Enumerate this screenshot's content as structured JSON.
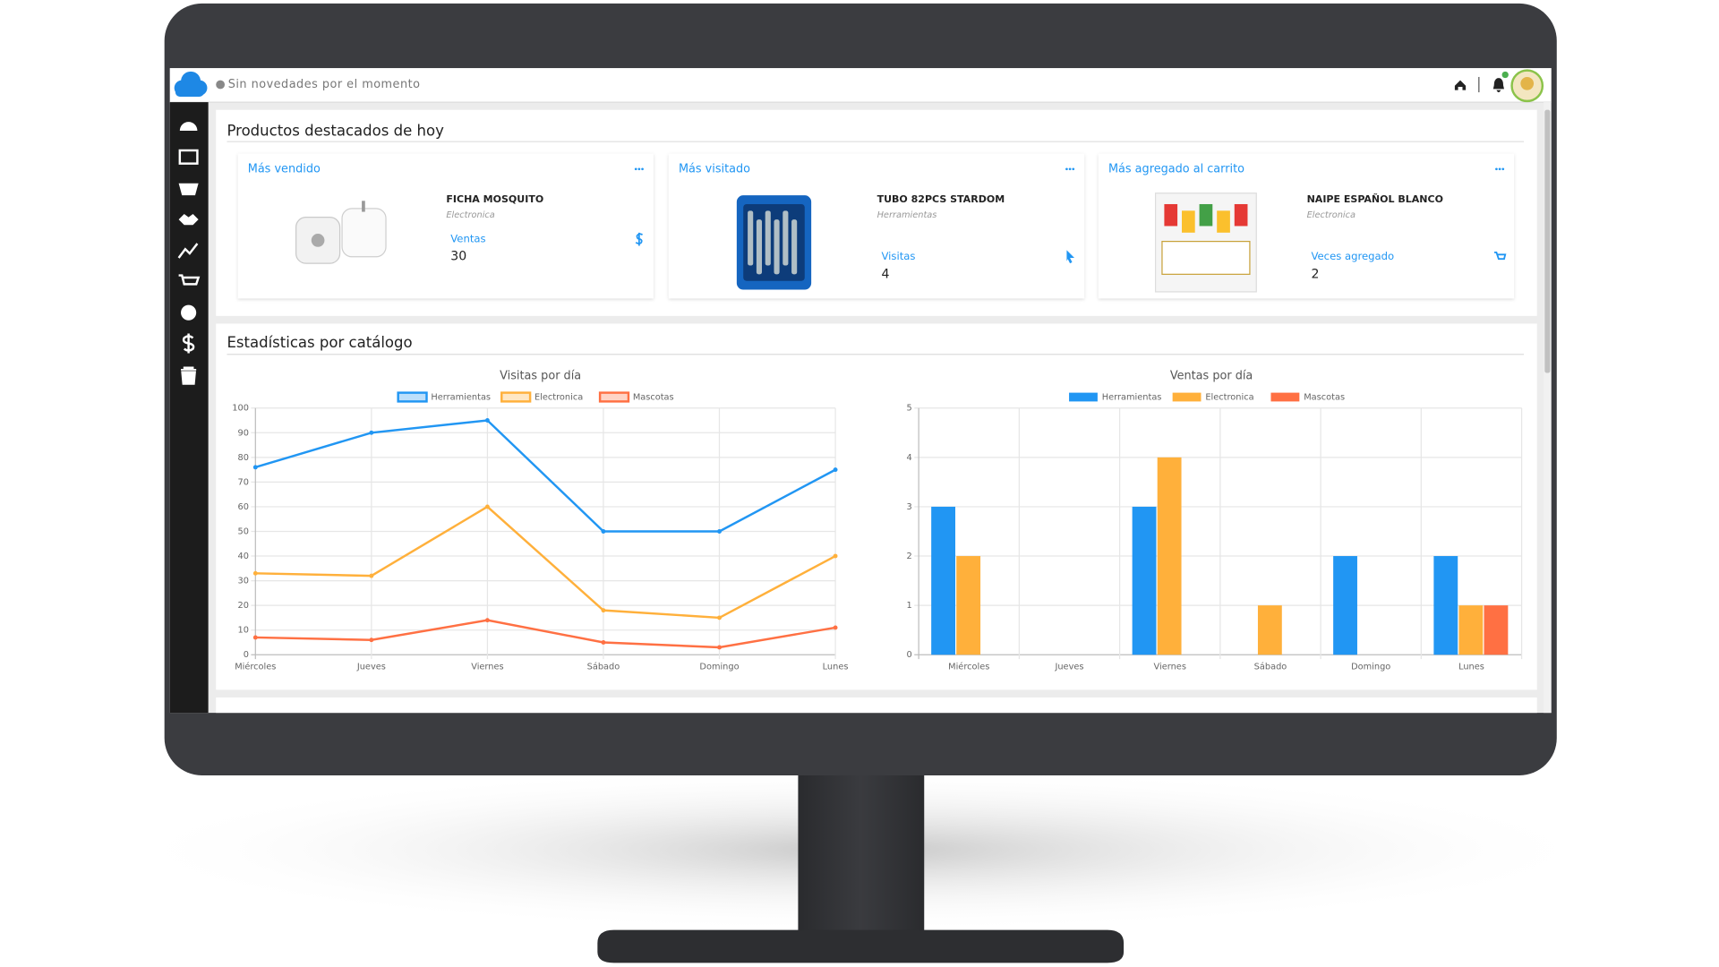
{
  "header": {
    "notice": "Sin novedades por el momento"
  },
  "featured": {
    "title": "Productos destacados de hoy",
    "cards": [
      {
        "heading": "Más vendido",
        "product": "FICHA MOSQUITO",
        "category": "Electronica",
        "metric": "Ventas",
        "value": 30
      },
      {
        "heading": "Más visitado",
        "product": "TUBO 82PCS STARDOM",
        "category": "Herramientas",
        "metric": "Visitas",
        "value": 4
      },
      {
        "heading": "Más agregado al carrito",
        "product": "NAIPE ESPAÑOL BLANCO",
        "category": "Electronica",
        "metric": "Veces agregado",
        "value": 2
      }
    ]
  },
  "stats": {
    "title": "Estadísticas por catálogo"
  },
  "chart_data": [
    {
      "type": "line",
      "title": "Visitas por día",
      "categories": [
        "Miércoles",
        "Jueves",
        "Viernes",
        "Sábado",
        "Domingo",
        "Lunes"
      ],
      "series": [
        {
          "name": "Herramientas",
          "color": "#2196f3",
          "values": [
            76,
            90,
            95,
            50,
            50,
            75
          ]
        },
        {
          "name": "Electronica",
          "color": "#ffb03b",
          "values": [
            33,
            32,
            60,
            18,
            15,
            40
          ]
        },
        {
          "name": "Mascotas",
          "color": "#ff7043",
          "values": [
            7,
            6,
            14,
            5,
            3,
            11
          ]
        }
      ],
      "ylim": [
        0,
        100
      ],
      "yticks": [
        0,
        10,
        20,
        30,
        40,
        50,
        60,
        70,
        80,
        90,
        100
      ],
      "grid": true,
      "legend": "top"
    },
    {
      "type": "bar",
      "title": "Ventas por día",
      "categories": [
        "Miércoles",
        "Jueves",
        "Viernes",
        "Sábado",
        "Domingo",
        "Lunes"
      ],
      "series": [
        {
          "name": "Herramientas",
          "color": "#2196f3",
          "values": [
            3,
            0,
            3,
            0,
            2,
            2
          ]
        },
        {
          "name": "Electronica",
          "color": "#ffb03b",
          "values": [
            2,
            0,
            4,
            1,
            0,
            1
          ]
        },
        {
          "name": "Mascotas",
          "color": "#ff7043",
          "values": [
            0,
            0,
            0,
            0,
            0,
            1
          ]
        }
      ],
      "ylim": [
        0,
        5
      ],
      "yticks": [
        0,
        1,
        2,
        3,
        4,
        5
      ],
      "grid": true,
      "legend": "top"
    }
  ]
}
